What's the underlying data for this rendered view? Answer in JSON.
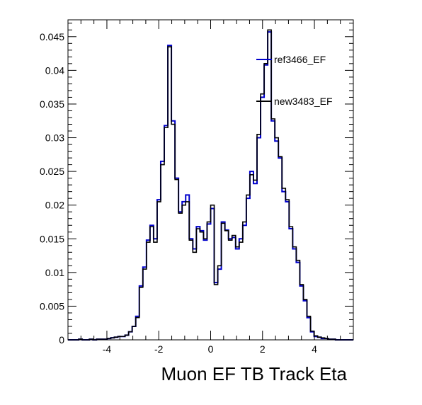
{
  "chart_data": {
    "type": "line",
    "title": "",
    "xlabel": "Muon EF TB Track Eta",
    "ylabel": "",
    "xlim": [
      -5.5,
      5.5
    ],
    "ylim": [
      0,
      0.0475
    ],
    "grid": false,
    "legend_position": "top-right",
    "x_ticks": [
      "-4",
      "-2",
      "0",
      "2",
      "4"
    ],
    "y_ticks": [
      "0",
      "0.005",
      "0.01",
      "0.015",
      "0.02",
      "0.025",
      "0.03",
      "0.035",
      "0.04",
      "0.045"
    ],
    "x_tick_values": [
      -4,
      -2,
      0,
      2,
      4
    ],
    "y_tick_values": [
      0,
      0.005,
      0.01,
      0.015,
      0.02,
      0.025,
      0.03,
      0.035,
      0.04,
      0.045
    ],
    "bin_edges_start": -5.5,
    "bin_width": 0.1375,
    "series": [
      {
        "name": "ref3466_EF",
        "color": "#0000cc",
        "values": [
          0,
          0,
          0,
          0.0001,
          0,
          0,
          0.0001,
          0,
          0.0001,
          0.0001,
          0.0001,
          0.0002,
          0.0003,
          0.0004,
          0.0005,
          0.0005,
          0.0007,
          0.0012,
          0.002,
          0.0035,
          0.008,
          0.0108,
          0.0148,
          0.017,
          0.015,
          0.0208,
          0.0265,
          0.0318,
          0.0437,
          0.0325,
          0.024,
          0.019,
          0.0205,
          0.0215,
          0.015,
          0.0135,
          0.0168,
          0.0162,
          0.0148,
          0.0172,
          0.0195,
          0.0085,
          0.0105,
          0.0175,
          0.0163,
          0.015,
          0.0152,
          0.0135,
          0.015,
          0.017,
          0.021,
          0.025,
          0.0232,
          0.03,
          0.036,
          0.0408,
          0.0457,
          0.0325,
          0.0295,
          0.027,
          0.022,
          0.0205,
          0.0165,
          0.0135,
          0.0115,
          0.008,
          0.0058,
          0.0033,
          0.0012,
          0.0005,
          0.0004,
          0.0002,
          0.0002,
          0.0001,
          0.0001,
          0,
          0,
          0,
          0,
          0
        ]
      },
      {
        "name": "new3483_EF",
        "color": "#000000",
        "values": [
          0,
          0,
          0,
          0.0001,
          0,
          0,
          0.0001,
          0,
          0.0001,
          0.0001,
          0.0001,
          0.0002,
          0.0003,
          0.0004,
          0.0005,
          0.0005,
          0.0007,
          0.0012,
          0.002,
          0.0033,
          0.0078,
          0.0105,
          0.0145,
          0.0168,
          0.0145,
          0.0205,
          0.026,
          0.0315,
          0.0435,
          0.032,
          0.0238,
          0.0188,
          0.02,
          0.0205,
          0.0148,
          0.013,
          0.0165,
          0.016,
          0.015,
          0.0175,
          0.02,
          0.0082,
          0.011,
          0.0173,
          0.0162,
          0.0148,
          0.0155,
          0.0138,
          0.0145,
          0.0175,
          0.0215,
          0.0245,
          0.0237,
          0.0305,
          0.0365,
          0.041,
          0.046,
          0.0328,
          0.03,
          0.0272,
          0.0225,
          0.0208,
          0.0168,
          0.0138,
          0.0118,
          0.0082,
          0.006,
          0.0035,
          0.0013,
          0.0006,
          0.0004,
          0.0003,
          0.0002,
          0.0001,
          0.0001,
          0,
          0,
          0,
          0,
          0
        ]
      }
    ]
  }
}
